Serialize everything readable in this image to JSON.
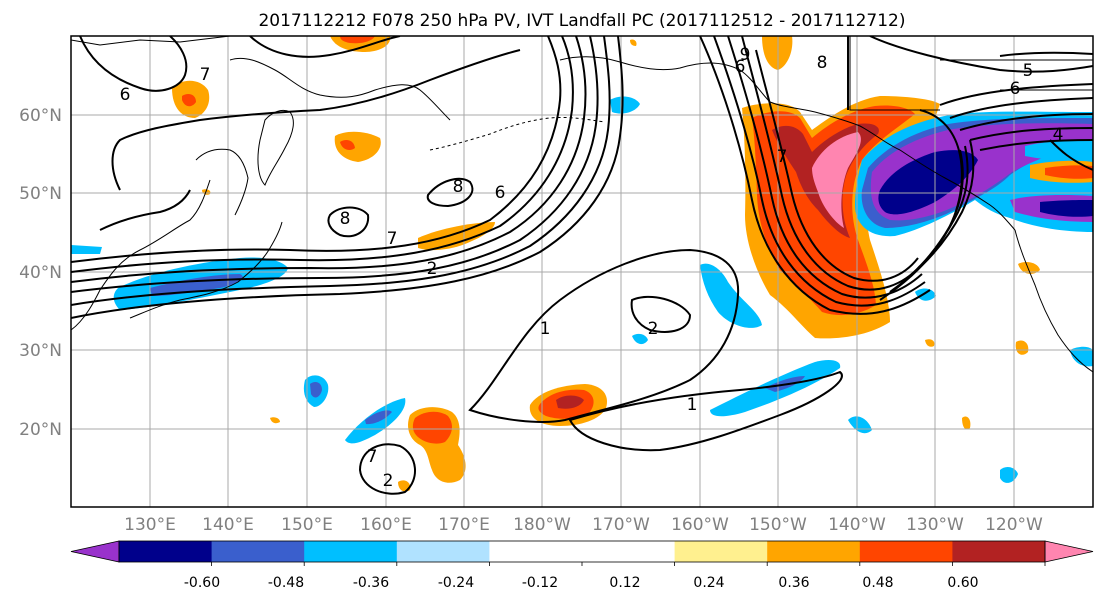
{
  "title": "2017112212 F078 250 hPa PV, IVT Landfall PC (2017112512 - 2017112712)",
  "lat_labels": [
    "60°N",
    "50°N",
    "40°N",
    "30°N",
    "20°N"
  ],
  "lon_labels": [
    "130°E",
    "140°E",
    "150°E",
    "160°E",
    "170°E",
    "180°W",
    "170°W",
    "160°W",
    "150°W",
    "140°W",
    "130°W",
    "120°W"
  ],
  "colorbar": {
    "colors": [
      "#9932cc",
      "#00008b",
      "#3a5fcd",
      "#00bfff",
      "#b0e2ff",
      "#ffffff",
      "#ffffff",
      "#fff08f",
      "#ffa500",
      "#ff4500",
      "#b22222",
      "#ff85b0"
    ],
    "tick_labels": [
      "-0.60",
      "-0.48",
      "-0.36",
      "-0.24",
      "-0.12",
      "0.12",
      "0.24",
      "0.36",
      "0.48",
      "0.60"
    ]
  },
  "contour_labels": [
    "6",
    "7",
    "8",
    "6",
    "8",
    "7",
    "2",
    "1",
    "2",
    "1",
    "7",
    "2",
    "6",
    "9",
    "8",
    "5",
    "6",
    "4",
    "7"
  ],
  "fill_colors": {
    "purple": "#9932cc",
    "navy": "#00008b",
    "royal": "#3a5fcd",
    "sky": "#00bfff",
    "pale_blue": "#b0e2ff",
    "yellow": "#fff08f",
    "orange": "#ffa500",
    "red_orange": "#ff4500",
    "dark_red": "#b22222",
    "pink": "#ff85b0"
  }
}
